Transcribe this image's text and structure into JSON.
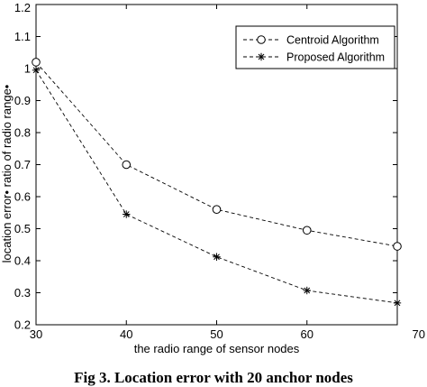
{
  "chart_data": {
    "type": "line",
    "caption": "Fig 3. Location error with 20 anchor nodes",
    "xlabel": "the radio range of sensor nodes",
    "ylabel": "location error•  ratio of radio range•",
    "xlim": [
      30,
      70
    ],
    "ylim": [
      0.2,
      1.2
    ],
    "xticks": [
      "30",
      "40",
      "50",
      "60",
      "70"
    ],
    "yticks": [
      "0.2",
      "0.3",
      "0.4",
      "0.5",
      "0.6",
      "0.7",
      "0.8",
      "0.9",
      "1",
      "1.1",
      "1.2"
    ],
    "grid": false,
    "legend_position": "top-right",
    "x": [
      30,
      40,
      50,
      60,
      70
    ],
    "series": [
      {
        "name": "Centroid Algorithm",
        "marker": "circle",
        "line": "dashed",
        "values": [
          1.02,
          0.7,
          0.56,
          0.495,
          0.445
        ]
      },
      {
        "name": "Proposed Algorithm",
        "marker": "asterisk",
        "line": "dashed",
        "values": [
          0.995,
          0.545,
          0.412,
          0.307,
          0.268
        ]
      }
    ],
    "colors": {
      "line": "#000000",
      "axis": "#000000"
    }
  }
}
